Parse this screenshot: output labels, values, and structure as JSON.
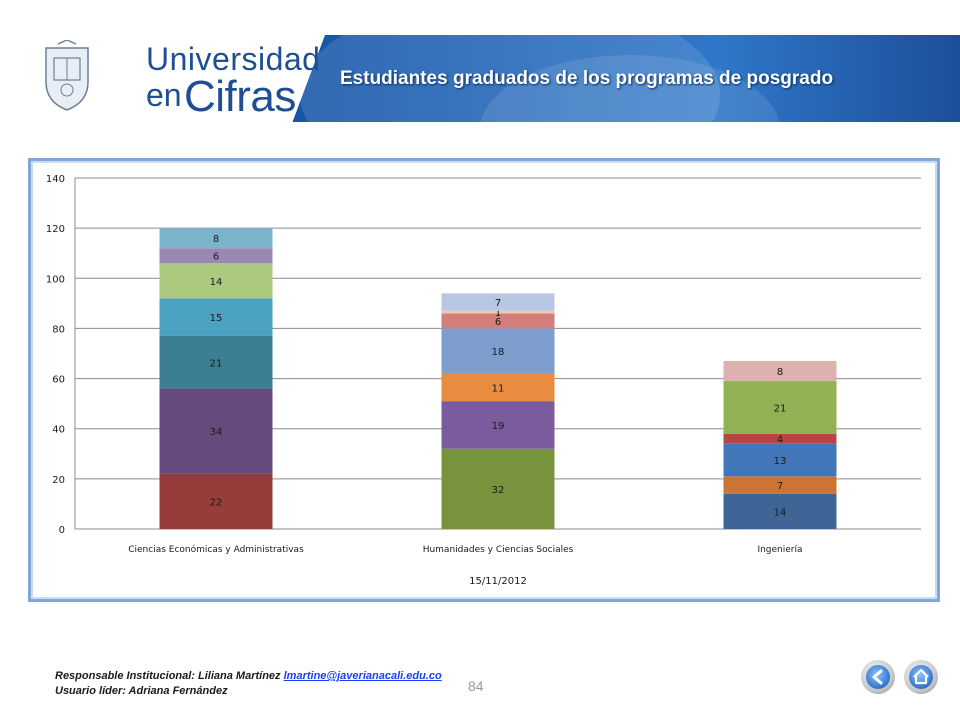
{
  "header": {
    "brand_line1": "Universidad",
    "brand_line2a": "en",
    "brand_line2b": "Cifras",
    "title": "Estudiantes graduados de los programas de posgrado"
  },
  "chart_data": {
    "type": "bar",
    "stacked": true,
    "categories": [
      "Ciencias Económicas y Administrativas",
      "Humanidades y Ciencias Sociales",
      "Ingeniería"
    ],
    "xlabel": "15/11/2012",
    "ylim": [
      0,
      140
    ],
    "yticks": [
      0,
      20,
      40,
      60,
      80,
      100,
      120,
      140
    ],
    "grid": true,
    "stacks": [
      {
        "category": "Ciencias Económicas y Administrativas",
        "segments": [
          {
            "value": 22,
            "color": "#963c3a"
          },
          {
            "value": 34,
            "color": "#654a7d"
          },
          {
            "value": 21,
            "color": "#3b7f93"
          },
          {
            "value": 15,
            "color": "#4ba2c0"
          },
          {
            "value": 14,
            "color": "#abc97f"
          },
          {
            "value": 6,
            "color": "#9b87b3"
          },
          {
            "value": 8,
            "color": "#7bb5cc"
          }
        ]
      },
      {
        "category": "Humanidades y Ciencias Sociales",
        "segments": [
          {
            "value": 32,
            "color": "#78933d"
          },
          {
            "value": 19,
            "color": "#7a5c9e"
          },
          {
            "value": 11,
            "color": "#e98c3f"
          },
          {
            "value": 18,
            "color": "#7d9ecc"
          },
          {
            "value": 6,
            "color": "#d27f7c"
          },
          {
            "value": 1,
            "color": "#f3c9a6"
          },
          {
            "value": 7,
            "color": "#b9c7e3"
          }
        ]
      },
      {
        "category": "Ingeniería",
        "segments": [
          {
            "value": 14,
            "color": "#3e6595"
          },
          {
            "value": 7,
            "color": "#cc7433"
          },
          {
            "value": 13,
            "color": "#4177b8"
          },
          {
            "value": 4,
            "color": "#b84543"
          },
          {
            "value": 21,
            "color": "#90b252"
          },
          {
            "value": 8,
            "color": "#ddb1af"
          }
        ]
      }
    ]
  },
  "footer": {
    "responsible_label": "Responsable Institucional: Liliana Martínez",
    "responsible_email": "lmartine@javerianacali.edu.co",
    "leader_label": "Usuario líder: Adriana Fernández",
    "page_number": "84"
  },
  "nav": {
    "back_icon": "back-arrow-icon",
    "home_icon": "home-icon"
  }
}
